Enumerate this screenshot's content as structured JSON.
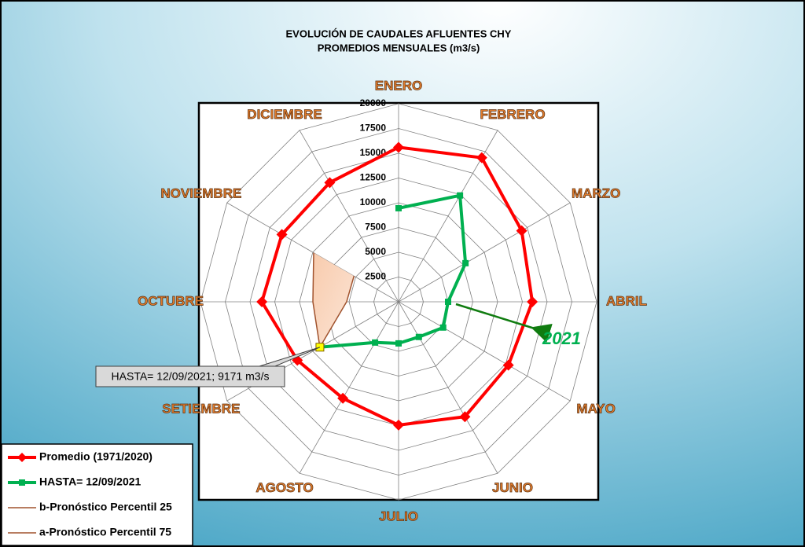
{
  "chart_data": {
    "type": "radar",
    "title": "EVOLUCIÓN DE CAUDALES AFLUENTES CHY",
    "subtitle": "PROMEDIOS MENSUALES (m3/s)",
    "categories": [
      "ENERO",
      "FEBRERO",
      "MARZO",
      "ABRIL",
      "MAYO",
      "JUNIO",
      "JULIO",
      "AGOSTO",
      "SETIEMBRE",
      "OCTUBRE",
      "NOVIEMBRE",
      "DICIEMBRE"
    ],
    "ylim": [
      0,
      20000
    ],
    "yticks": [
      2500,
      5000,
      7500,
      10000,
      12500,
      15000,
      17500,
      20000
    ],
    "grid": true,
    "legend": "bottom-left",
    "series": [
      {
        "name": "Promedio (1971/2020)",
        "color": "#ff0000",
        "marker": "diamond",
        "values": [
          15600,
          16800,
          14350,
          13500,
          12800,
          13400,
          12450,
          11250,
          11800,
          13800,
          13600,
          13900
        ]
      },
      {
        "name": "HASTA= 12/09/2021",
        "color": "#00b050",
        "marker": "square",
        "values": [
          9450,
          12400,
          7800,
          5000,
          5200,
          4100,
          4200,
          4750,
          9171,
          null,
          null,
          null
        ]
      },
      {
        "name": "b-Pronóstico Percentil 25",
        "color": "#a0522d",
        "marker": "none",
        "values": [
          null,
          null,
          null,
          null,
          null,
          null,
          null,
          null,
          9171,
          5250,
          5200,
          null
        ]
      },
      {
        "name": "a-Pronóstico Percentil 75",
        "color": "#a0522d",
        "marker": "none",
        "values": [
          null,
          null,
          null,
          null,
          null,
          null,
          null,
          null,
          9171,
          8650,
          9900,
          null
        ]
      }
    ],
    "annotations": [
      {
        "text": "2021",
        "color": "#00b050",
        "series": 1,
        "point": 3
      },
      {
        "text": "HASTA= 12/09/2021; 9171 m3/s",
        "series": 1,
        "point": 8
      }
    ]
  }
}
